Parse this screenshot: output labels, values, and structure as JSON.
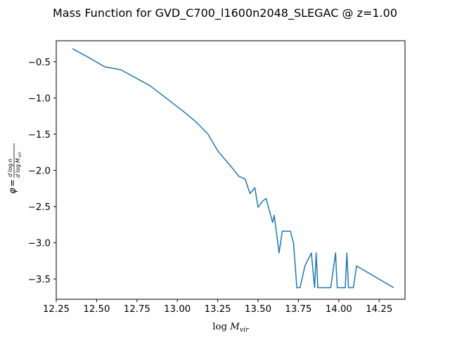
{
  "chart_data": {
    "type": "line",
    "title": "Mass Function for GVD_C700_l1600n2048_SLEGAC @ z=1.00",
    "xlabel": "log M_vir",
    "ylabel": "φ = dlog n / dlog M_vir",
    "xlim": [
      12.25,
      14.41
    ],
    "ylim": [
      -3.78,
      -0.21
    ],
    "xticks": [
      12.25,
      12.5,
      12.75,
      13.0,
      13.25,
      13.5,
      13.75,
      14.0,
      14.25
    ],
    "xtick_labels": [
      "12.25",
      "12.50",
      "12.75",
      "13.00",
      "13.25",
      "13.50",
      "13.75",
      "14.00",
      "14.25"
    ],
    "yticks": [
      -0.5,
      -1.0,
      -1.5,
      -2.0,
      -2.5,
      -3.0,
      -3.5
    ],
    "ytick_labels": [
      "−0.5",
      "−1.0",
      "−1.5",
      "−2.0",
      "−2.5",
      "−3.0",
      "−3.5"
    ],
    "grid": false,
    "series": [
      {
        "color": "#1f77b4",
        "x": [
          12.35,
          12.45,
          12.55,
          12.65,
          12.74,
          12.83,
          12.93,
          13.04,
          13.12,
          13.19,
          13.25,
          13.33,
          13.38,
          13.42,
          13.45,
          13.48,
          13.5,
          13.53,
          13.55,
          13.59,
          13.6,
          13.63,
          13.65,
          13.66,
          13.7,
          13.72,
          13.74,
          13.76,
          13.79,
          13.83,
          13.85,
          13.86,
          13.87,
          13.89,
          13.95,
          13.98,
          13.99,
          14.04,
          14.05,
          14.06,
          14.09,
          14.11,
          14.34
        ],
        "y": [
          -0.32,
          -0.44,
          -0.57,
          -0.61,
          -0.72,
          -0.83,
          -1.0,
          -1.19,
          -1.34,
          -1.5,
          -1.73,
          -1.94,
          -2.08,
          -2.12,
          -2.32,
          -2.24,
          -2.51,
          -2.42,
          -2.39,
          -2.72,
          -2.62,
          -3.14,
          -2.84,
          -2.84,
          -2.84,
          -3.01,
          -3.62,
          -3.62,
          -3.32,
          -3.14,
          -3.62,
          -3.14,
          -3.62,
          -3.62,
          -3.62,
          -3.14,
          -3.62,
          -3.62,
          -3.14,
          -3.62,
          -3.62,
          -3.32,
          -3.62
        ]
      }
    ]
  }
}
